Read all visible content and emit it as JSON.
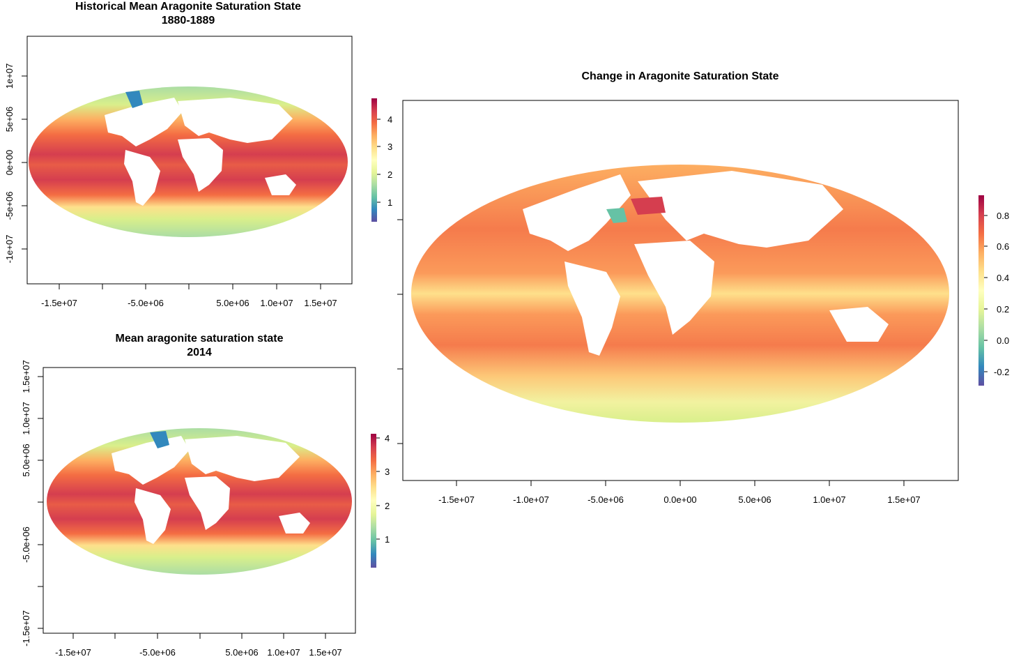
{
  "maps": [
    {
      "id": "historical",
      "title_line1": "Historical Mean Aragonite Saturation State",
      "title_line2": "1880-1889",
      "x_ticks": [
        "-1.5e+07",
        "-5.0e+06",
        "5.0e+06",
        "1.0e+07",
        "1.5e+07"
      ],
      "y_ticks": [
        "1e+07",
        "5e+06",
        "0e+00",
        "-5e+06",
        "-1e+07"
      ],
      "legend_ticks": [
        "4",
        "3",
        "2",
        "1"
      ],
      "legend_range": [
        0.6,
        4.8
      ]
    },
    {
      "id": "recent",
      "title_line1": "Mean aragonite saturation state",
      "title_line2": "2014",
      "x_ticks": [
        "-1.5e+07",
        "-5.0e+06",
        "5.0e+06",
        "1.0e+07",
        "1.5e+07"
      ],
      "y_ticks": [
        "1.5e+07",
        "1.0e+07",
        "5.0e+06",
        "-5.0e+06",
        "-1.5e+07"
      ],
      "legend_ticks": [
        "4",
        "3",
        "2",
        "1"
      ],
      "legend_range": [
        0.0,
        4.1
      ]
    },
    {
      "id": "change",
      "title_line1": "Change in Aragonite Saturation State",
      "title_line2": "",
      "x_ticks": [
        "-1.5e+07",
        "-1.0e+07",
        "-5.0e+06",
        "0.0e+00",
        "5.0e+06",
        "1.0e+07",
        "1.5e+07"
      ],
      "y_ticks": [],
      "legend_ticks": [
        "0.8",
        "0.6",
        "0.4",
        "0.2",
        "0.0",
        "-0.2"
      ],
      "legend_range": [
        -0.3,
        0.93
      ]
    }
  ],
  "palette": [
    "#5e4fa2",
    "#3288bd",
    "#66c2a5",
    "#abdda4",
    "#e6f598",
    "#ffffbf",
    "#fee08b",
    "#fdae61",
    "#f46d43",
    "#d53e4f",
    "#9e0142"
  ]
}
